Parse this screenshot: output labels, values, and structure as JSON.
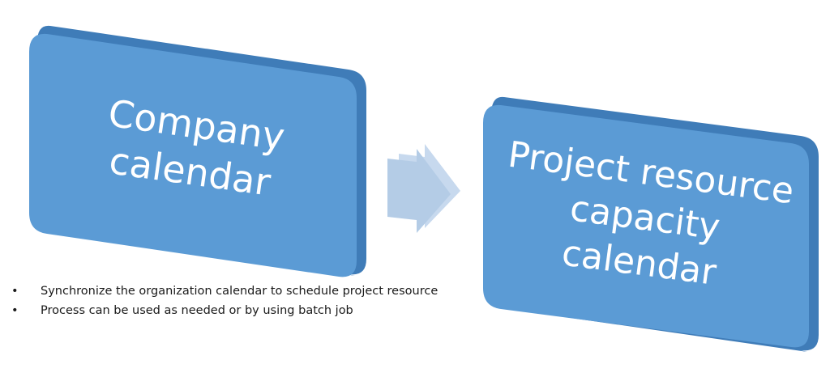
{
  "diagram": {
    "source_box": {
      "lines": [
        "Company",
        "calendar"
      ]
    },
    "target_box": {
      "lines": [
        "Project resource",
        "capacity",
        "calendar"
      ]
    },
    "arrow_icon": "right-arrow-icon",
    "notes": [
      "Synchronize the organization calendar to schedule project resource",
      "Process can be used as needed or by using batch job"
    ],
    "colors": {
      "box_face": "#5B9BD5",
      "box_edge": "#3F7CB8",
      "box_text": "#FFFFFF",
      "arrow": "#B4CCE6",
      "arrow_edge": "#C7D9EE"
    }
  }
}
